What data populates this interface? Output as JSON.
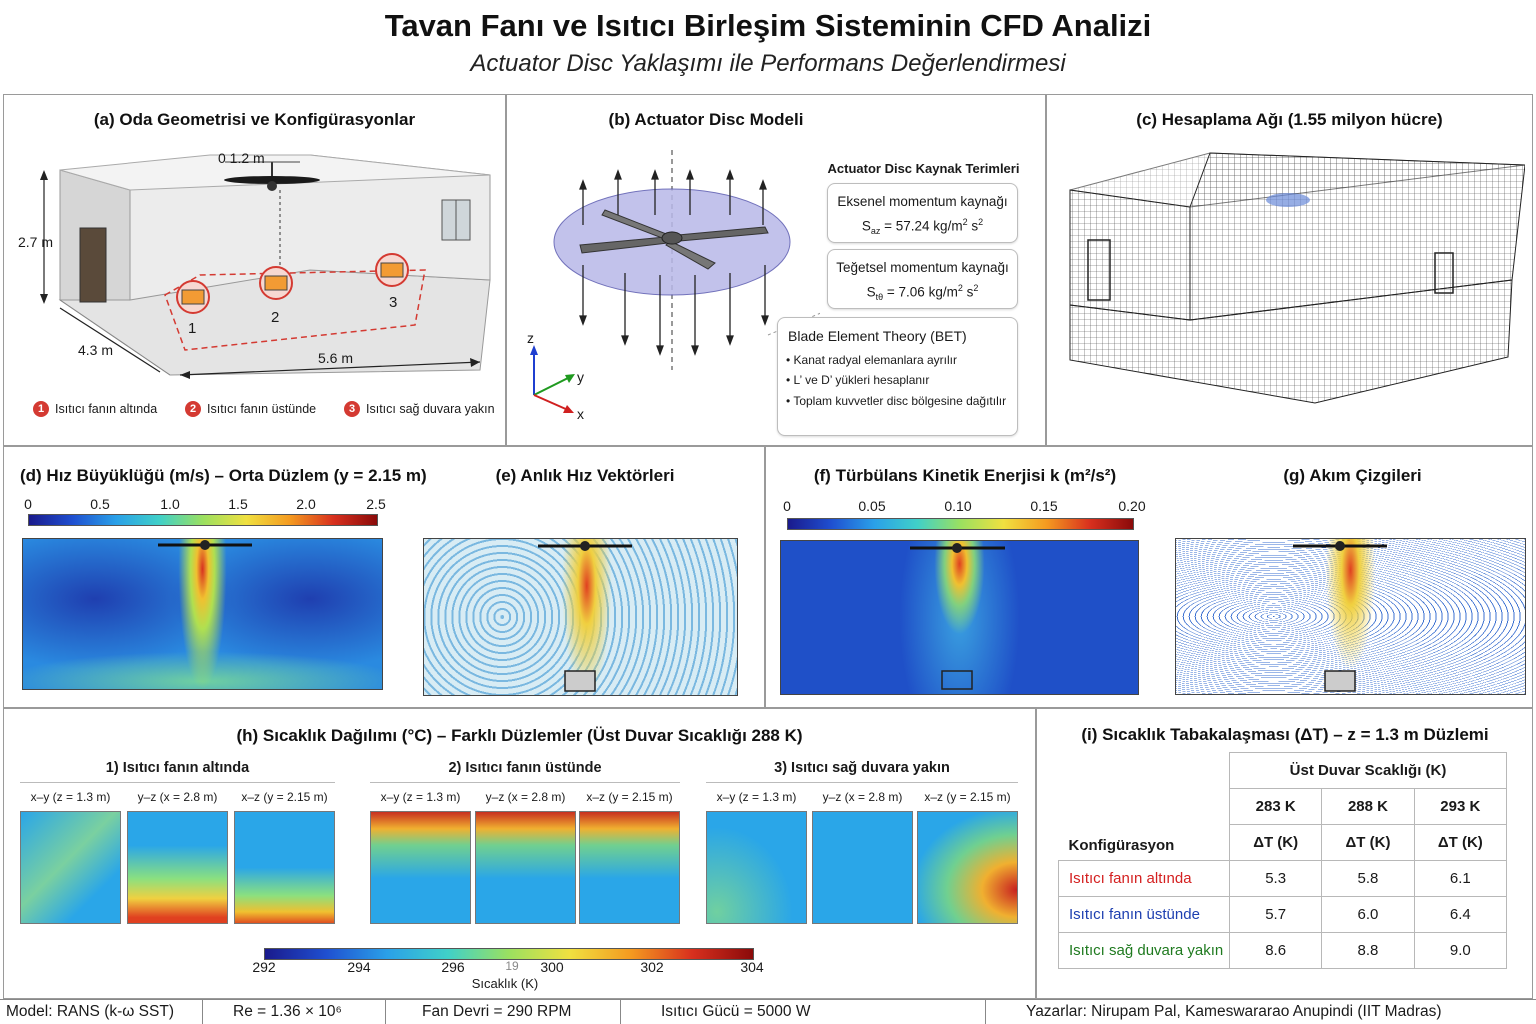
{
  "header": {
    "title": "Tavan Fanı ve Isıtıcı Birleşim Sisteminin CFD Analizi",
    "subtitle": "Actuator Disc Yaklaşımı ile Performans Değerlendirmesi"
  },
  "panel_a": {
    "title": "(a) Oda Geometrisi ve Konfigürasyonlar",
    "fan_dia": "0 1.2 m",
    "height": "2.7 m",
    "width": "4.3 m",
    "length": "5.6 m",
    "marker_labels": [
      "1",
      "2",
      "3"
    ],
    "configs": [
      {
        "num": "1",
        "label": "Isıtıcı fanın altında"
      },
      {
        "num": "2",
        "label": "Isıtıcı fanın üstünde"
      },
      {
        "num": "3",
        "label": "Isıtıcı sağ duvara yakın"
      }
    ]
  },
  "panel_b": {
    "title": "(b) Actuator Disc Modeli",
    "source_title": "Actuator Disc Kaynak Terimleri",
    "axial_label": "Eksenel momentum kaynağı",
    "axial_sym": "S",
    "axial_sub": "az",
    "axial_val": " = 57.24 kg/m",
    "axial_exp1": "2",
    "axial_s": " s",
    "axial_exp2": "2",
    "tang_label": "Teğetsel momentum kaynağı",
    "tang_sym": "S",
    "tang_sub": "tθ",
    "tang_val": " = 7.06 kg/m",
    "tang_exp1": "2",
    "tang_s": " s",
    "tang_exp2": "2",
    "bet_title": "Blade Element Theory (BET)",
    "bet_items": [
      "Kanat radyal elemanlara ayrılır",
      "L’ ve D’ yükleri hesaplanır",
      "Toplam kuvvetler disc bölgesine dağıtılır"
    ],
    "axis_z": "z",
    "axis_y": "y",
    "axis_x": "x"
  },
  "panel_c": {
    "title": "(c) Hesaplama Ağı (1.55 milyon hücre)"
  },
  "panel_d": {
    "title": "(d) Hız Büyüklüğü (m/s) – Orta Düzlem (y = 2.15 m)",
    "ticks": [
      "0",
      "0.5",
      "1.0",
      "1.5",
      "2.0",
      "2.5"
    ]
  },
  "panel_e": {
    "title": "(e) Anlık Hız Vektörleri"
  },
  "panel_f": {
    "title": "(f) Türbülans Kinetik Enerjisi k (m²/s²)",
    "ticks": [
      "0",
      "0.05",
      "0.10",
      "0.15",
      "0.20"
    ]
  },
  "panel_g": {
    "title": "(g) Akım Çizgileri"
  },
  "panel_h": {
    "title": "(h) Sıcaklık Dağılımı (°C) – Farklı Düzlemler (Üst Duvar Sıcaklığı 288 K)",
    "groups": [
      {
        "title": "1) Isıtıcı fanın altında",
        "planes": [
          "x–y (z = 1.3 m)",
          "y–z (x = 2.8 m)",
          "x–z (y = 2.15 m)"
        ]
      },
      {
        "title": "2) Isıtıcı fanın üstünde",
        "planes": [
          "x–y (z = 1.3 m)",
          "y–z (x = 2.8 m)",
          "x–z (y = 2.15 m)"
        ]
      },
      {
        "title": "3) Isıtıcı sağ duvara yakın",
        "planes": [
          "x–y (z = 1.3 m)",
          "y–z (x = 2.8 m)",
          "x–z (y = 2.15 m)"
        ]
      }
    ],
    "ticks": [
      "292",
      "294",
      "296",
      "300",
      "302",
      "304"
    ],
    "stray": "19",
    "cbar_label": "Sıcaklık (K)"
  },
  "panel_i": {
    "title": "(i) Sıcaklık Tabakalaşması (ΔT) – z = 1.3 m Düzlemi",
    "group_header": "Üst Duvar Scaklığı (K)",
    "temps": [
      "283 K",
      "288 K",
      "293 K"
    ],
    "row_header": "Konfigürasyon",
    "dt": [
      "ΔT (K)",
      "ΔT (K)",
      "ΔT (K)"
    ],
    "rows": [
      {
        "label": "Isıtıcı fanın altında",
        "color": "#d42020",
        "values": [
          "5.3",
          "5.8",
          "6.1"
        ]
      },
      {
        "label": "Isıtıcı fanın üstünde",
        "color": "#1d3fb0",
        "values": [
          "5.7",
          "6.0",
          "6.4"
        ]
      },
      {
        "label": "Isıtıcı sağ duvara yakın",
        "color": "#1f7a1f",
        "values": [
          "8.6",
          "8.8",
          "9.0"
        ]
      }
    ]
  },
  "footer": {
    "model": "Model: RANS (k-ω SST)",
    "re": "Re = 1.36 × 10⁶",
    "fan": "Fan Devri = 290 RPM",
    "heater": "Isıtıcı Gücü = 5000 W",
    "authors": "Yazarlar: Nirupam Pal, Kameswararao Anupindi (IIT Madras)"
  },
  "colors": {
    "accent_red": "#d43a32",
    "disc": "#b8b8e8",
    "axis_z": "#1f3fd0",
    "axis_y": "#1f9a1f",
    "axis_x": "#d02020"
  }
}
